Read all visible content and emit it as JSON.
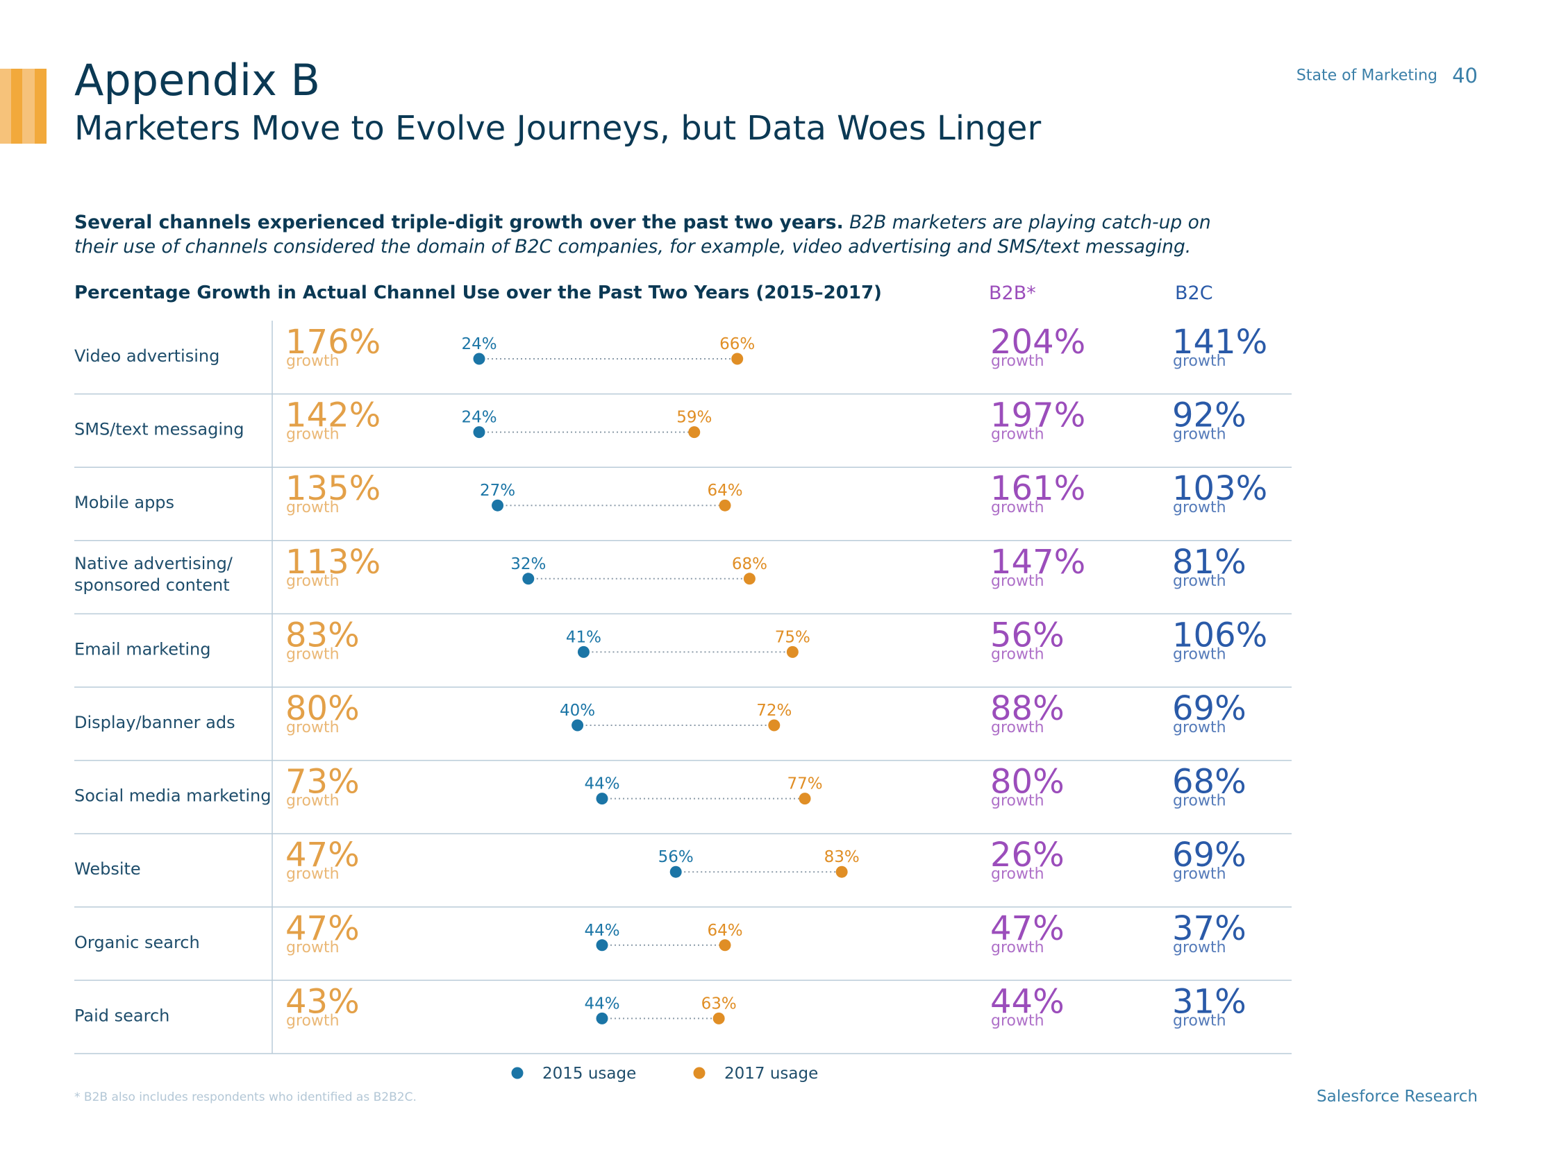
{
  "header": {
    "title": "Appendix B",
    "subtitle": "Marketers Move to Evolve Journeys, but Data Woes Linger",
    "report_label": "State of Marketing",
    "page_number": "40"
  },
  "intro": {
    "bold": "Several channels experienced triple-digit growth over the past two years.",
    "italic": "B2B marketers are playing catch-up on their use of channels considered the domain of B2C companies, for example, video advertising and SMS/text messaging."
  },
  "colors": {
    "accent_bars": [
      "#f6c27a",
      "#f2a93b",
      "#f6c27a",
      "#f2a93b"
    ],
    "growth_overall": "#e3a048",
    "b2b": "#9b4dbb",
    "b2c": "#2a5aa8",
    "usage_2015": "#1b75a6",
    "usage_2017": "#e08e25",
    "row_label": "#1e4d6b",
    "divider": "#b9cbd8"
  },
  "chart_data": {
    "type": "dumbbell",
    "title": "Percentage Growth in Actual Channel Use over the Past Two Years (2015–2017)",
    "columns": {
      "b2b": "B2B*",
      "b2c": "B2C"
    },
    "growth_word": "growth",
    "legend": [
      {
        "key": "2015",
        "label": "2015 usage"
      },
      {
        "key": "2017",
        "label": "2017 usage"
      }
    ],
    "rows": [
      {
        "label": [
          "Video advertising"
        ],
        "growth": "176%",
        "usage_2015": 24,
        "usage_2017": 66,
        "b2b": "204%",
        "b2c": "141%"
      },
      {
        "label": [
          "SMS/text messaging"
        ],
        "growth": "142%",
        "usage_2015": 24,
        "usage_2017": 59,
        "b2b": "197%",
        "b2c": "92%"
      },
      {
        "label": [
          "Mobile apps"
        ],
        "growth": "135%",
        "usage_2015": 27,
        "usage_2017": 64,
        "b2b": "161%",
        "b2c": "103%"
      },
      {
        "label": [
          "Native advertising/",
          "sponsored content"
        ],
        "growth": "113%",
        "usage_2015": 32,
        "usage_2017": 68,
        "b2b": "147%",
        "b2c": "81%"
      },
      {
        "label": [
          "Email marketing"
        ],
        "growth": "83%",
        "usage_2015": 41,
        "usage_2017": 75,
        "b2b": "56%",
        "b2c": "106%"
      },
      {
        "label": [
          "Display/banner ads"
        ],
        "growth": "80%",
        "usage_2015": 40,
        "usage_2017": 72,
        "b2b": "88%",
        "b2c": "69%"
      },
      {
        "label": [
          "Social media marketing"
        ],
        "growth": "73%",
        "usage_2015": 44,
        "usage_2017": 77,
        "b2b": "80%",
        "b2c": "68%"
      },
      {
        "label": [
          "Website"
        ],
        "growth": "47%",
        "usage_2015": 56,
        "usage_2017": 83,
        "b2b": "26%",
        "b2c": "69%"
      },
      {
        "label": [
          "Organic search"
        ],
        "growth": "47%",
        "usage_2015": 44,
        "usage_2017": 64,
        "b2b": "47%",
        "b2c": "37%"
      },
      {
        "label": [
          "Paid search"
        ],
        "growth": "43%",
        "usage_2015": 44,
        "usage_2017": 63,
        "b2b": "44%",
        "b2c": "31%"
      }
    ]
  },
  "footer": {
    "footnote": "* B2B also includes respondents who identified as B2B2C.",
    "source": "Salesforce Research"
  }
}
